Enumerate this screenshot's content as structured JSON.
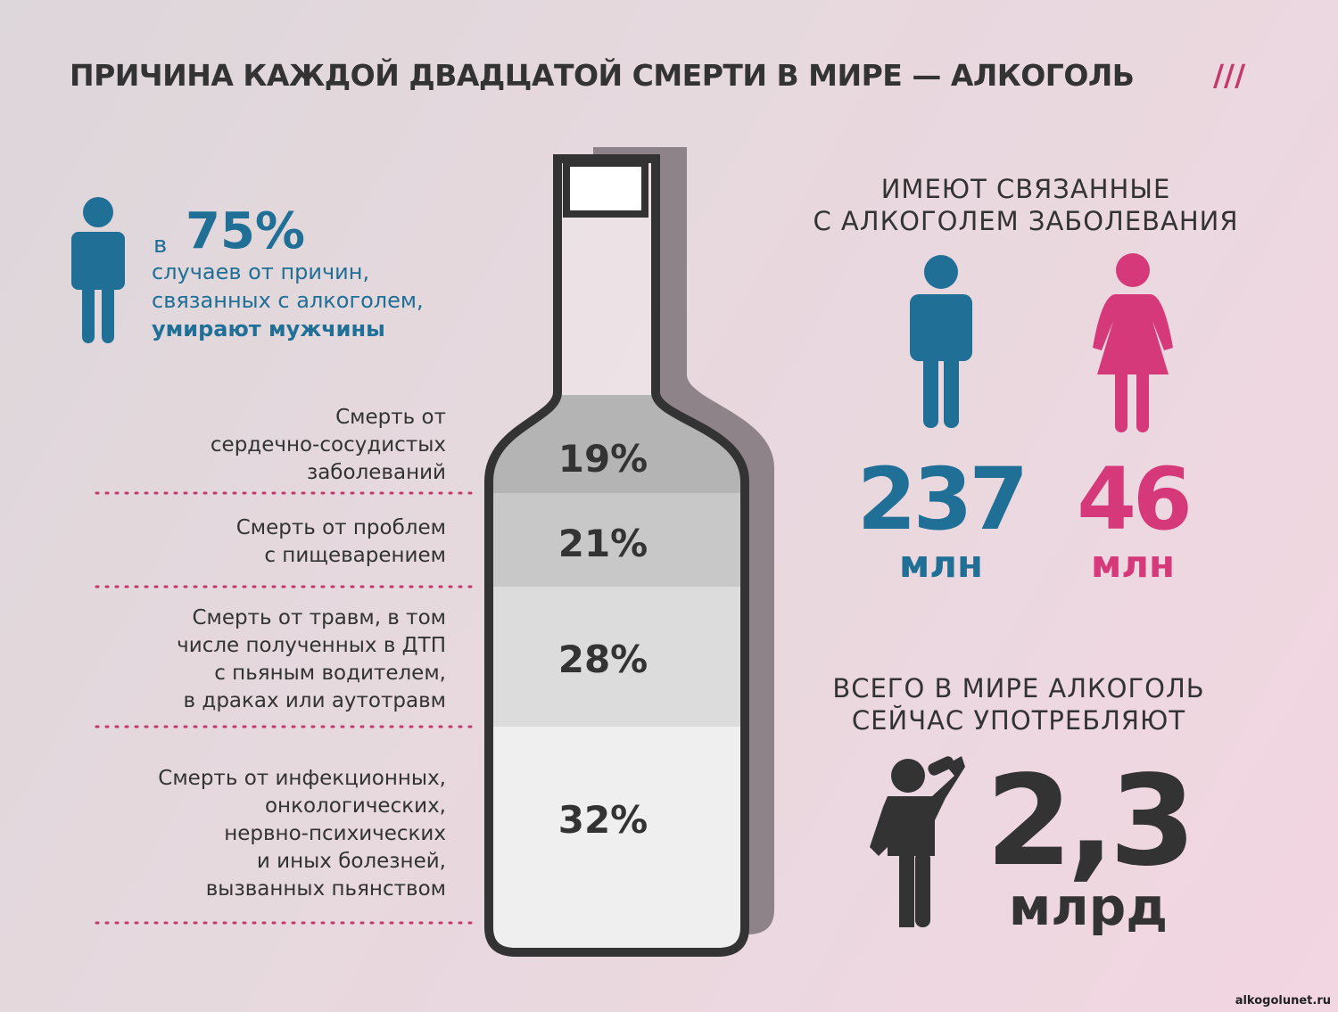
{
  "title": "ПРИЧИНА КАЖДОЙ ДВАДЦАТОЙ СМЕРТИ В МИРЕ — АЛКОГОЛЬ",
  "title_mark": "///",
  "men_share": {
    "prefix": "в",
    "value": "75%",
    "lines": [
      "случаев от причин,",
      "связанных с алкоголем,"
    ],
    "emphasis": "умирают мужчины"
  },
  "causes": [
    {
      "lines": [
        "Смерть от",
        "сердечно-сосудистых",
        "заболеваний"
      ],
      "share": "19%"
    },
    {
      "lines": [
        "Смерть от проблем",
        "с пищеварением"
      ],
      "share": "21%"
    },
    {
      "lines": [
        "Смерть от травм, в том",
        "числе полученных в ДТП",
        "с пьяным водителем,",
        "в драках или аутотравм"
      ],
      "share": "28%"
    },
    {
      "lines": [
        "Смерть от инфекционных,",
        "онкологических,",
        "нервно-психических",
        "и иных болезней,",
        "вызванных пьянством"
      ],
      "share": "32%"
    }
  ],
  "diseases": {
    "heading": [
      "ИМЕЮТ СВЯЗАННЫЕ",
      "С АЛКОГОЛЕМ ЗАБОЛЕВАНИЯ"
    ],
    "men": {
      "value": "237",
      "unit": "млн"
    },
    "women": {
      "value": "46",
      "unit": "млн"
    }
  },
  "drinkers": {
    "heading": [
      "ВСЕГО В МИРЕ АЛКОГОЛЬ",
      "СЕЙЧАС УПОТРЕБЛЯЮТ"
    ],
    "value": "2,3",
    "unit": "млрд"
  },
  "watermark": "alkogolunet.ru"
}
